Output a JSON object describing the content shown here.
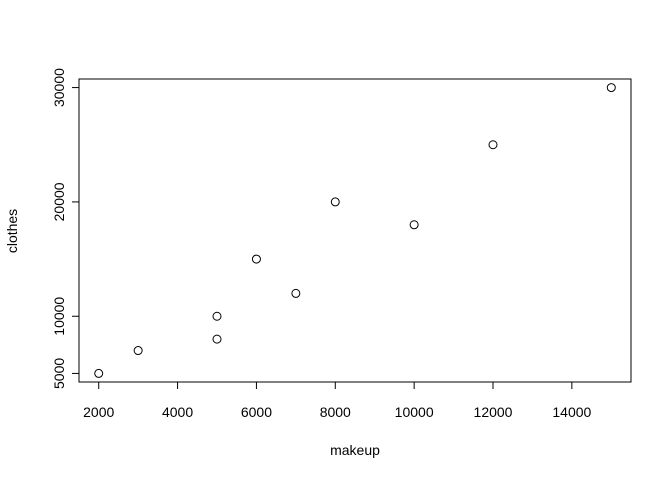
{
  "chart_data": {
    "type": "scatter",
    "title": "",
    "xlabel": "makeup",
    "ylabel": "clothes",
    "xlim": [
      1500,
      15500
    ],
    "ylim": [
      4250,
      30750
    ],
    "xticks": [
      2000,
      4000,
      6000,
      8000,
      10000,
      12000,
      14000
    ],
    "yticks": [
      5000,
      10000,
      20000,
      30000
    ],
    "grid": false,
    "legend": "none",
    "marker": "open-circle",
    "color": "#000000",
    "series": [
      {
        "x": [
          2000,
          3000,
          5000,
          5000,
          6000,
          7000,
          8000,
          10000,
          12000,
          15000
        ],
        "y": [
          5000,
          7000,
          8000,
          10000,
          15000,
          12000,
          20000,
          18000,
          25000,
          30000
        ]
      }
    ]
  }
}
